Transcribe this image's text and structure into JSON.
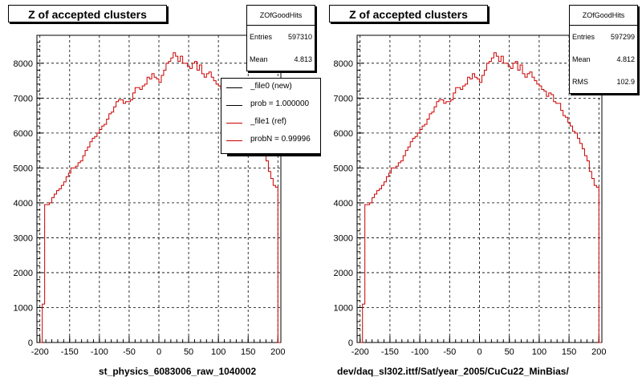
{
  "panels": [
    {
      "title": "Z of accepted clusters",
      "stats": {
        "name": "ZOfGoodHits",
        "rows": [
          {
            "label": "Entries",
            "value": "597310"
          },
          {
            "label": "Mean",
            "value": "4.813"
          }
        ]
      },
      "xlabel": "st_physics_6083006_raw_1040002",
      "legend": [
        {
          "label": "_file0 (new)",
          "color": "#000000"
        },
        {
          "label": "prob = 1.000000",
          "color": "#000000"
        },
        {
          "label": "_file1 (ref)",
          "color": "#cc0000"
        },
        {
          "label": "probN = 0.99996",
          "color": "#cc0000"
        }
      ]
    },
    {
      "title": "Z of accepted clusters",
      "stats": {
        "name": "ZOfGoodHits",
        "rows": [
          {
            "label": "Entries",
            "value": "597299"
          },
          {
            "label": "Mean",
            "value": "4.812"
          },
          {
            "label": "RMS",
            "value": "102.9"
          }
        ]
      },
      "xlabel": "dev/daq_sl302.ittf/Sat/year_2005/CuCu22_MinBias/"
    }
  ],
  "chart_data": [
    {
      "type": "histogram",
      "title": "Z of accepted clusters",
      "xlabel": "st_physics_6083006_raw_1040002",
      "xlim": [
        -205,
        205
      ],
      "ylim": [
        0,
        8800
      ],
      "xticks": [
        -200,
        -150,
        -100,
        -50,
        0,
        50,
        100,
        150,
        200
      ],
      "yticks": [
        0,
        1000,
        2000,
        3000,
        4000,
        5000,
        6000,
        7000,
        8000
      ],
      "grid": true,
      "line_color": "#cc0000",
      "bins": {
        "x_start": -200,
        "bin_width": 4,
        "values": [
          0,
          1100,
          3950,
          3950,
          4000,
          4150,
          4250,
          4350,
          4400,
          4500,
          4600,
          4750,
          4850,
          5000,
          5000,
          5050,
          5150,
          5200,
          5350,
          5500,
          5600,
          5750,
          5850,
          5900,
          6000,
          6100,
          6200,
          6250,
          6400,
          6550,
          6600,
          6750,
          6900,
          6950,
          6950,
          6850,
          6900,
          6900,
          6950,
          7150,
          7300,
          7300,
          7250,
          7350,
          7400,
          7600,
          7550,
          7700,
          7600,
          7550,
          7450,
          7650,
          7800,
          8000,
          8050,
          8150,
          8300,
          8200,
          8050,
          8200,
          8000,
          8000,
          7900,
          7850,
          8000,
          8050,
          7800,
          7950,
          7700,
          7600,
          7700,
          7750,
          7600,
          7500,
          7400,
          7350,
          7250,
          7200,
          7050,
          7150,
          7100,
          6900,
          6850,
          6850,
          6650,
          6500,
          6450,
          6300,
          6200,
          6050,
          6000,
          5850,
          5700,
          5550,
          5350,
          5200,
          4900,
          4700,
          4500,
          4450,
          0
        ]
      },
      "legend_position": "top-right"
    },
    {
      "type": "histogram",
      "title": "Z of accepted clusters",
      "xlabel": "dev/daq_sl302.ittf/Sat/year_2005/CuCu22_MinBias/",
      "xlim": [
        -205,
        205
      ],
      "ylim": [
        0,
        8800
      ],
      "xticks": [
        -200,
        -150,
        -100,
        -50,
        0,
        50,
        100,
        150,
        200
      ],
      "yticks": [
        0,
        1000,
        2000,
        3000,
        4000,
        5000,
        6000,
        7000,
        8000
      ],
      "grid": true,
      "line_color": "#cc0000",
      "bins": {
        "x_start": -200,
        "bin_width": 4,
        "values": [
          0,
          1100,
          3950,
          3950,
          4000,
          4150,
          4250,
          4350,
          4400,
          4500,
          4600,
          4750,
          4850,
          5000,
          5000,
          5050,
          5150,
          5200,
          5350,
          5500,
          5600,
          5750,
          5850,
          5900,
          6000,
          6100,
          6200,
          6250,
          6400,
          6550,
          6600,
          6750,
          6900,
          6950,
          6950,
          6850,
          6900,
          6900,
          6950,
          7150,
          7300,
          7300,
          7250,
          7350,
          7400,
          7600,
          7550,
          7700,
          7600,
          7550,
          7450,
          7650,
          7800,
          8000,
          8050,
          8150,
          8300,
          8200,
          8050,
          8200,
          8000,
          8000,
          7900,
          7850,
          8000,
          8050,
          7800,
          7950,
          7700,
          7600,
          7700,
          7750,
          7600,
          7500,
          7400,
          7350,
          7250,
          7200,
          7050,
          7150,
          7100,
          6900,
          6850,
          6850,
          6650,
          6500,
          6450,
          6300,
          6200,
          6050,
          6000,
          5850,
          5700,
          5550,
          5350,
          5200,
          4900,
          4700,
          4500,
          4450,
          0
        ]
      }
    }
  ]
}
